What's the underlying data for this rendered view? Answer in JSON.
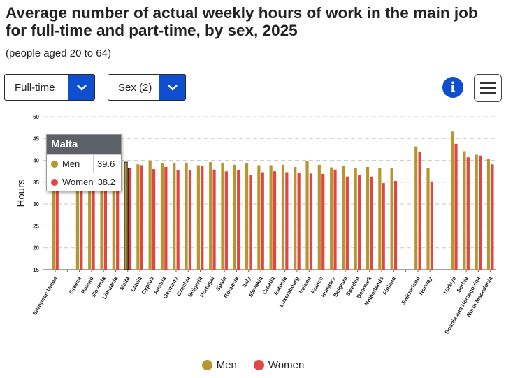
{
  "header": {
    "title": "Average number of actual weekly hours of work in the main job for full-time and part-time, by sex, 2025",
    "subtitle": "(people aged 20 to 64)"
  },
  "controls": {
    "dropdown1": "Full-time",
    "dropdown2": "Sex (2)",
    "info_glyph": "i"
  },
  "tooltip": {
    "title": "Malta",
    "rows": [
      {
        "name": "Men",
        "value": "39.6"
      },
      {
        "name": "Women",
        "value": "38.2"
      }
    ]
  },
  "colors": {
    "men": "#b8962e",
    "women": "#e04646",
    "accent": "#0d4fce"
  },
  "chart_data": {
    "type": "bar",
    "ylabel": "Hours",
    "ylim": [
      15,
      50
    ],
    "yticks": [
      "15",
      "20",
      "25",
      "30",
      "35",
      "40",
      "45",
      "50"
    ],
    "grid": "horizontal-dashed",
    "legend_position": "bottom-center",
    "highlighted_category": "Malta",
    "categories": [
      "European Union",
      "",
      "Greece",
      "Poland",
      "Slovenia",
      "Lithuania",
      "Malta",
      "Latvia",
      "Cyprus",
      "Austria",
      "Germany",
      "Czechia",
      "Bulgaria",
      "Portugal",
      "Spain",
      "Romania",
      "Italy",
      "Slovakia",
      "Croatia",
      "Estonia",
      "Luxembourg",
      "Ireland",
      "France",
      "Hungary",
      "Belgium",
      "Sweden",
      "Denmark",
      "Netherlands",
      "Finland",
      "",
      "Switzerland",
      "Norway",
      "",
      "Türkiye",
      "Serbia",
      "Bosnia and Herzegovina",
      "North Macedonia"
    ],
    "series": [
      {
        "name": "Men",
        "values": [
          39.0,
          null,
          39.2,
          39.6,
          39.8,
          39.3,
          39.6,
          39.1,
          39.9,
          39.3,
          39.3,
          39.5,
          38.9,
          39.6,
          39.3,
          39.0,
          39.3,
          38.9,
          38.9,
          39.0,
          38.5,
          39.8,
          39.0,
          38.4,
          38.7,
          38.3,
          38.5,
          38.3,
          38.3,
          null,
          43.2,
          38.3,
          null,
          46.6,
          42.1,
          41.3,
          40.4
        ]
      },
      {
        "name": "Women",
        "values": [
          37.5,
          null,
          37.8,
          38.1,
          38.1,
          38.1,
          38.2,
          38.9,
          38.0,
          38.5,
          37.7,
          37.8,
          38.8,
          37.9,
          37.5,
          37.7,
          36.6,
          37.3,
          37.5,
          37.3,
          37.2,
          37.0,
          36.9,
          37.9,
          36.3,
          36.6,
          36.3,
          34.8,
          35.3,
          null,
          42.0,
          35.2,
          null,
          43.8,
          40.7,
          41.1,
          39.1
        ]
      }
    ]
  },
  "legend": {
    "men": "Men",
    "women": "Women"
  }
}
